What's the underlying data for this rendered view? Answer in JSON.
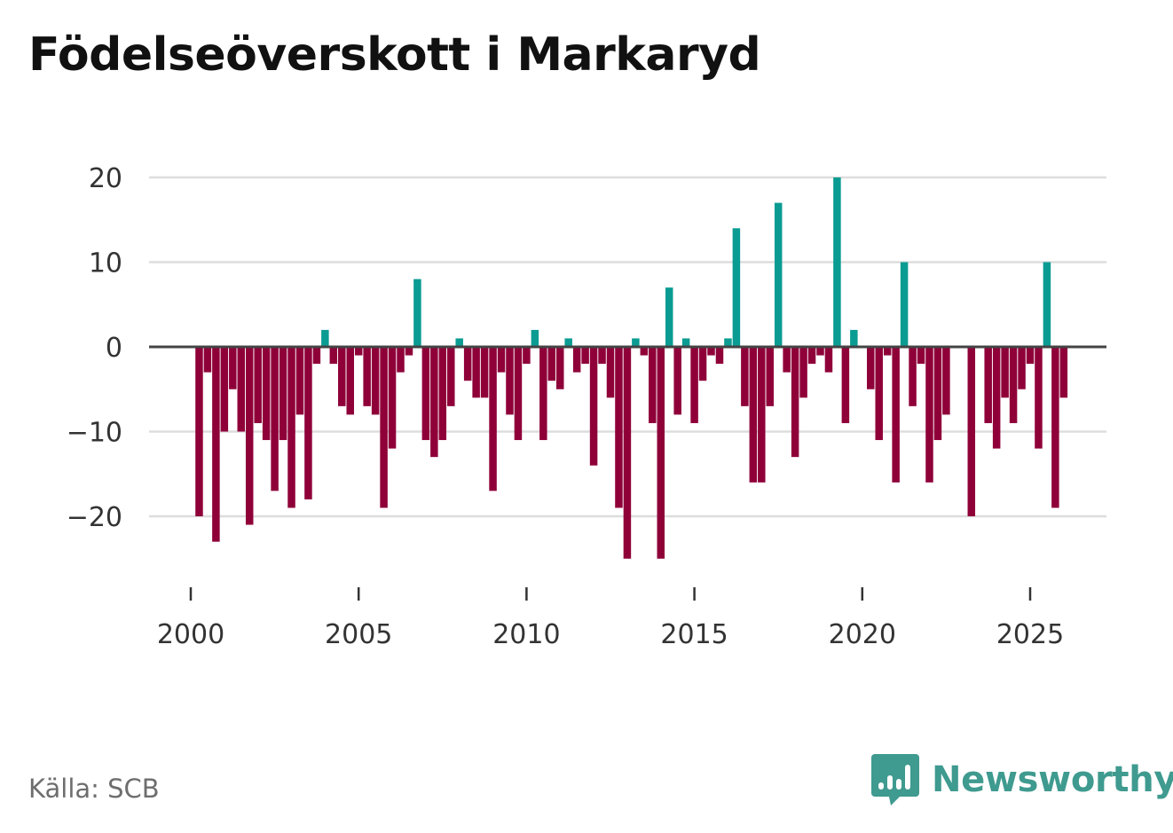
{
  "title": "Födelseöverskott i Markaryd",
  "source": "Källa: SCB",
  "brand": "Newsworthy",
  "icons": {
    "logo": "newsworthy-bar-chart-icon"
  },
  "colors": {
    "positive": "#0a9c93",
    "negative": "#8f0039",
    "zero_line": "#444444",
    "grid": "#dddddd",
    "brand": "#3f9a8f"
  },
  "chart_data": {
    "type": "bar",
    "title": "Födelseöverskott i Markaryd",
    "xlabel": "",
    "ylabel": "",
    "ylim": [
      -27,
      22
    ],
    "xlim": [
      1999.2,
      2027.4
    ],
    "y_ticks": [
      20,
      10,
      0,
      -10,
      -20
    ],
    "y_tick_labels": [
      "20",
      "10",
      "0",
      "−10",
      "−20"
    ],
    "x_ticks": [
      2000,
      2005,
      2010,
      2015,
      2020,
      2025
    ],
    "x_tick_labels": [
      "2000",
      "2005",
      "2010",
      "2015",
      "2020",
      "2025"
    ],
    "start": 2000.25,
    "step": 0.25,
    "values": [
      -20,
      -3,
      -23,
      -10,
      -5,
      -10,
      -21,
      -9,
      -11,
      -17,
      -11,
      -19,
      -8,
      -18,
      -2,
      2,
      -2,
      -7,
      -8,
      -1,
      -7,
      -8,
      -19,
      -12,
      -3,
      -1,
      8,
      -11,
      -13,
      -11,
      -7,
      1,
      -4,
      -6,
      -6,
      -17,
      -3,
      -8,
      -11,
      -2,
      2,
      -11,
      -4,
      -5,
      1,
      -3,
      -2,
      -14,
      -2,
      -6,
      -19,
      -25,
      1,
      -1,
      -9,
      -25,
      7,
      -8,
      1,
      -9,
      -4,
      -1,
      -2,
      1,
      14,
      -7,
      -16,
      -16,
      -7,
      17,
      -3,
      -13,
      -6,
      -2,
      -1,
      -3,
      20,
      -9,
      2,
      0,
      -5,
      -11,
      -1,
      -16,
      10,
      -7,
      -2,
      -16,
      -11,
      -8,
      0,
      0,
      -20,
      0,
      -9,
      -12,
      -6,
      -9,
      -5,
      -2,
      -12,
      10,
      -19,
      -6
    ]
  }
}
